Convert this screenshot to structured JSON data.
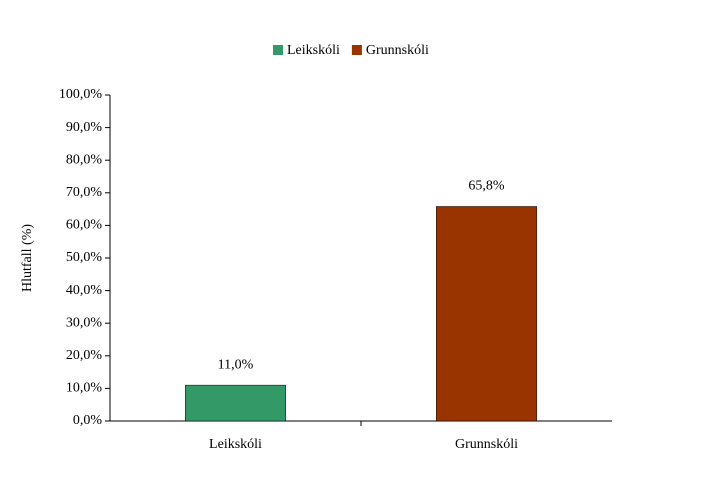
{
  "chart_data": {
    "type": "bar",
    "y_label": "Hlutfall (%)",
    "categories": [
      "Leikskóli",
      "Grunnskóli"
    ],
    "series": [
      {
        "name": "Leikskóli",
        "color": "#339966",
        "values": [
          11.0,
          null
        ],
        "value_labels": [
          "11,0%",
          null
        ]
      },
      {
        "name": "Grunnskóli",
        "color": "#993300",
        "values": [
          null,
          65.8
        ],
        "value_labels": [
          null,
          "65,8%"
        ]
      }
    ],
    "ylim": [
      0,
      100
    ],
    "yticks": [
      {
        "value": 0,
        "label": "0,0%"
      },
      {
        "value": 10,
        "label": "10,0%"
      },
      {
        "value": 20,
        "label": "20,0%"
      },
      {
        "value": 30,
        "label": "30,0%"
      },
      {
        "value": 40,
        "label": "40,0%"
      },
      {
        "value": 50,
        "label": "50,0%"
      },
      {
        "value": 60,
        "label": "60,0%"
      },
      {
        "value": 70,
        "label": "70,0%"
      },
      {
        "value": 80,
        "label": "80,0%"
      },
      {
        "value": 90,
        "label": "90,0%"
      },
      {
        "value": 100,
        "label": "100,0%"
      }
    ],
    "legend": "top"
  }
}
